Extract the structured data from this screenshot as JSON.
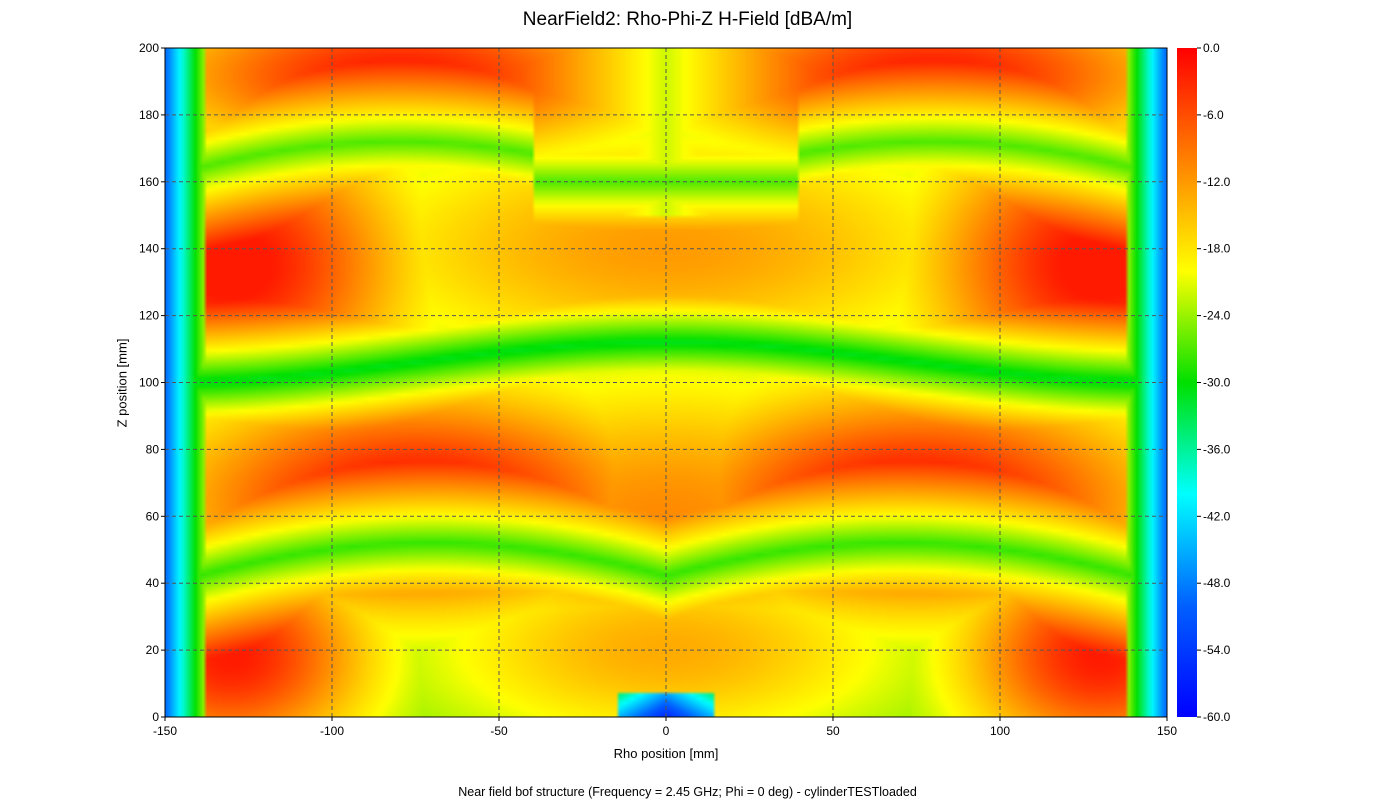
{
  "chart_data": {
    "type": "heatmap",
    "title": "NearField2: Rho-Phi-Z H-Field [dBA/m]",
    "xlabel": "Rho position [mm]",
    "ylabel": "Z position [mm]",
    "footer": "Near field bof structure (Frequency = 2.45 GHz; Phi = 0 deg) - cylinderTESTloaded",
    "xlim": [
      -150,
      150
    ],
    "ylim": [
      0,
      200
    ],
    "xticks": [
      "-150",
      "-100",
      "-50",
      "0",
      "50",
      "100",
      "150"
    ],
    "yticks": [
      "0",
      "20",
      "40",
      "60",
      "80",
      "100",
      "120",
      "140",
      "160",
      "180",
      "200"
    ],
    "colorbar": {
      "min": -60.0,
      "max": 0.0,
      "ticks": [
        "0.0",
        "-6.0",
        "-12.0",
        "-18.0",
        "-24.0",
        "-30.0",
        "-36.0",
        "-42.0",
        "-48.0",
        "-54.0",
        "-60.0"
      ],
      "colors": [
        "#ff0000",
        "#ff8000",
        "#ffff00",
        "#00e000",
        "#00ffff",
        "#0060ff",
        "#0000ff"
      ]
    },
    "grid": true,
    "field_description": {
      "hot_lobes_dBA_m": [
        {
          "rho": -130,
          "z": 135,
          "value": -2
        },
        {
          "rho": 130,
          "z": 135,
          "value": -2
        },
        {
          "rho": -75,
          "z": 65,
          "value": -2
        },
        {
          "rho": 75,
          "z": 65,
          "value": -2
        },
        {
          "rho": -80,
          "z": 190,
          "value": -3
        },
        {
          "rho": 80,
          "z": 190,
          "value": -3
        },
        {
          "rho": -130,
          "z": 20,
          "value": -3
        },
        {
          "rho": 130,
          "z": 20,
          "value": -3
        }
      ],
      "minimum_dBA_m": {
        "rho": 0,
        "z": 0,
        "value": -60
      }
    }
  }
}
